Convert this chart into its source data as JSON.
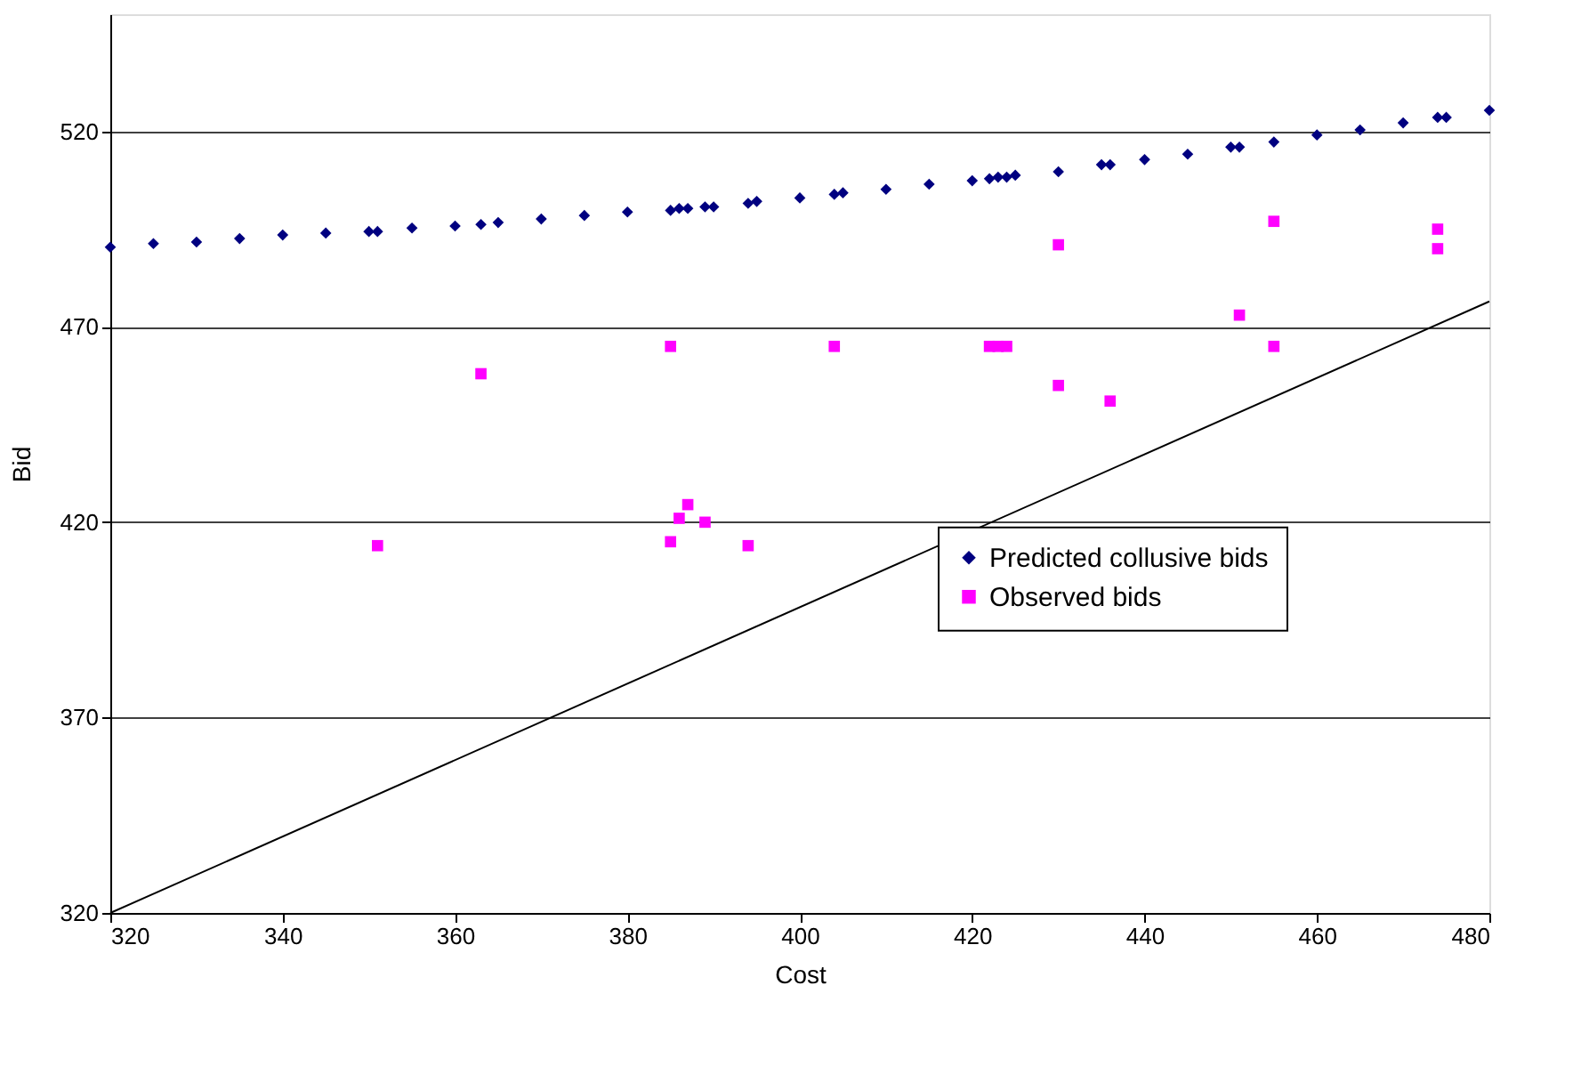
{
  "chart_data": {
    "type": "scatter",
    "xlabel": "Cost",
    "ylabel": "Bid",
    "xlim": [
      320,
      480
    ],
    "xticks": [
      320,
      340,
      360,
      380,
      400,
      420,
      440,
      460,
      480
    ],
    "ylim": [
      320,
      550
    ],
    "yticks": [
      320,
      370,
      420,
      470,
      520
    ],
    "grid": "y",
    "legend": "right",
    "series": [
      {
        "name": "Predicted collusive bids",
        "color": "#000080",
        "marker": "diamond",
        "x": [
          320,
          325,
          330,
          335,
          340,
          345,
          350,
          351,
          355,
          360,
          363,
          365,
          370,
          375,
          380,
          385,
          386,
          387,
          389,
          390,
          394,
          395,
          400,
          404,
          405,
          410,
          415,
          420,
          422,
          423,
          424,
          425,
          430,
          435,
          436,
          440,
          445,
          450,
          451,
          455,
          460,
          465,
          470,
          474,
          475,
          480
        ],
        "values": [
          490.4,
          491.3,
          491.7,
          492.6,
          493.5,
          494.0,
          494.4,
          494.4,
          495.3,
          495.8,
          496.2,
          496.7,
          497.6,
          498.5,
          499.4,
          499.8,
          500.3,
          500.3,
          500.7,
          500.7,
          501.6,
          502.1,
          503.0,
          503.9,
          504.3,
          505.2,
          506.5,
          507.4,
          507.9,
          508.3,
          508.3,
          508.8,
          509.7,
          511.5,
          511.5,
          512.8,
          514.2,
          516.0,
          516.0,
          517.3,
          519.1,
          520.4,
          522.2,
          523.6,
          523.6,
          525.4
        ]
      },
      {
        "name": "Observed bids",
        "color": "#ff00ff",
        "marker": "square",
        "x": [
          351,
          363,
          385,
          385,
          386,
          387,
          389,
          394,
          404,
          422,
          423,
          424,
          430,
          430,
          436,
          451,
          455,
          455,
          474,
          474
        ],
        "values": [
          414,
          458,
          465,
          415,
          421,
          424.5,
          420,
          414,
          465,
          465,
          465,
          465,
          491,
          455,
          451,
          473,
          497,
          465,
          495,
          490
        ]
      },
      {
        "type": "line",
        "color": "#000000",
        "line_style": "solid",
        "x": [
          320,
          480
        ],
        "values": [
          320,
          476.5
        ]
      }
    ]
  }
}
